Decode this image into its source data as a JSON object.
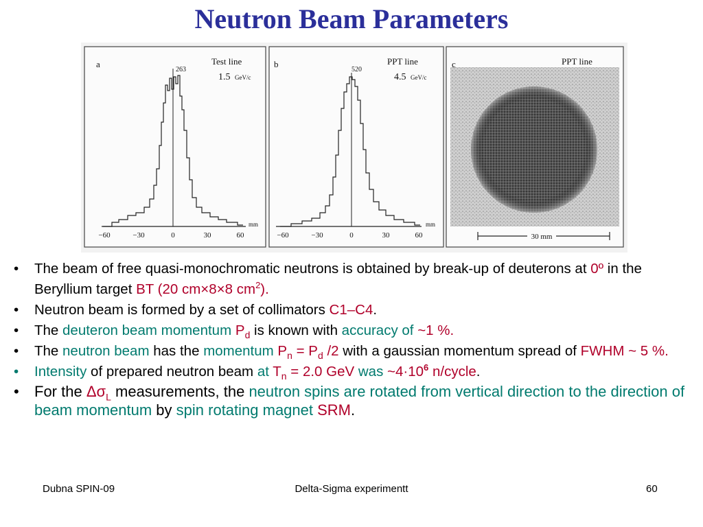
{
  "title": "Neutron Beam Parameters",
  "figure": {
    "panel_a": {
      "letter": "a",
      "line": "Test line",
      "momentum": "1.5",
      "unit": "GeV/c",
      "peak": "263",
      "ticks": [
        "−60",
        "−30",
        "0",
        "30",
        "60"
      ],
      "axis_unit": "mm"
    },
    "panel_b": {
      "letter": "b",
      "line": "PPT line",
      "momentum": "4.5",
      "unit": "GeV/c",
      "peak": "520",
      "ticks": [
        "−60",
        "−30",
        "0",
        "30",
        "60"
      ],
      "axis_unit": "mm"
    },
    "panel_c": {
      "letter": "c",
      "line": "PPT line",
      "scale": "30 mm"
    }
  },
  "bullets": {
    "b1": {
      "dot": "•",
      "t1": "The beam of free quasi-monochromatic neutrons  is obtained by break-up of deuterons at ",
      "r1": "0º",
      "t2": " in the Beryllium target   ",
      "r2": "BT (20 cm×8×8 cm",
      "r2sup": "2",
      "r3": ")."
    },
    "b2": {
      "dot": "•",
      "t1": "Neutron beam is formed by a set of collimators ",
      "r1": "C1–C4",
      "t2": "."
    },
    "b3": {
      "dot": "•",
      "t1": "The ",
      "g1": "deuteron beam momentum",
      "t2": "  ",
      "r1": "P",
      "r1sub": "d",
      "t3": "  is  known  with  ",
      "g2": "accuracy  of",
      "t4": "   ",
      "r2": "~1 %."
    },
    "b4": {
      "dot": "•",
      "t1": "The ",
      "g1": "neutron beam",
      "t2": " has the ",
      "g2": "momentum",
      "t3": "  ",
      "r1": "P",
      "r1sub": "n",
      "r2": " = P",
      "r2sub": "d",
      "r3": " /2",
      "t4": "  with a gaussian momentum spread of  ",
      "r4": "FWHM ~ 5 %."
    },
    "b5": {
      "dot": "•",
      "g1": "Intensity",
      "t1": "  of  prepared  neutron  beam  ",
      "g2": "at",
      "t2": "  ",
      "r1": "T",
      "r1sub": "n",
      "r2": " = 2.0 GeV",
      "t3": "  ",
      "g3": "was",
      "t4": "   ",
      "r3": "~4·10",
      "r3sup": "6",
      "r4": " n/cycle",
      "t5": "."
    },
    "b6": {
      "dot": "•",
      "t1": "For the ",
      "r1": "Δσ",
      "r1sub": "L",
      "t2": " measurements, the ",
      "g1": "neutron spins are rotated from vertical direction to the direction of beam momentum",
      "t3": " by ",
      "g2": "spin rotating magnet",
      "t4": " ",
      "r2": "SRM",
      "t5": "."
    }
  },
  "footer": {
    "left": "Dubna SPIN-09",
    "center": "Delta-Sigma experimentt",
    "right": "60"
  },
  "colors": {
    "title": "#2b2f9a",
    "dark_red": "#b0002a",
    "teal": "#007a6e",
    "bullet5_dot": "#007a6e"
  }
}
